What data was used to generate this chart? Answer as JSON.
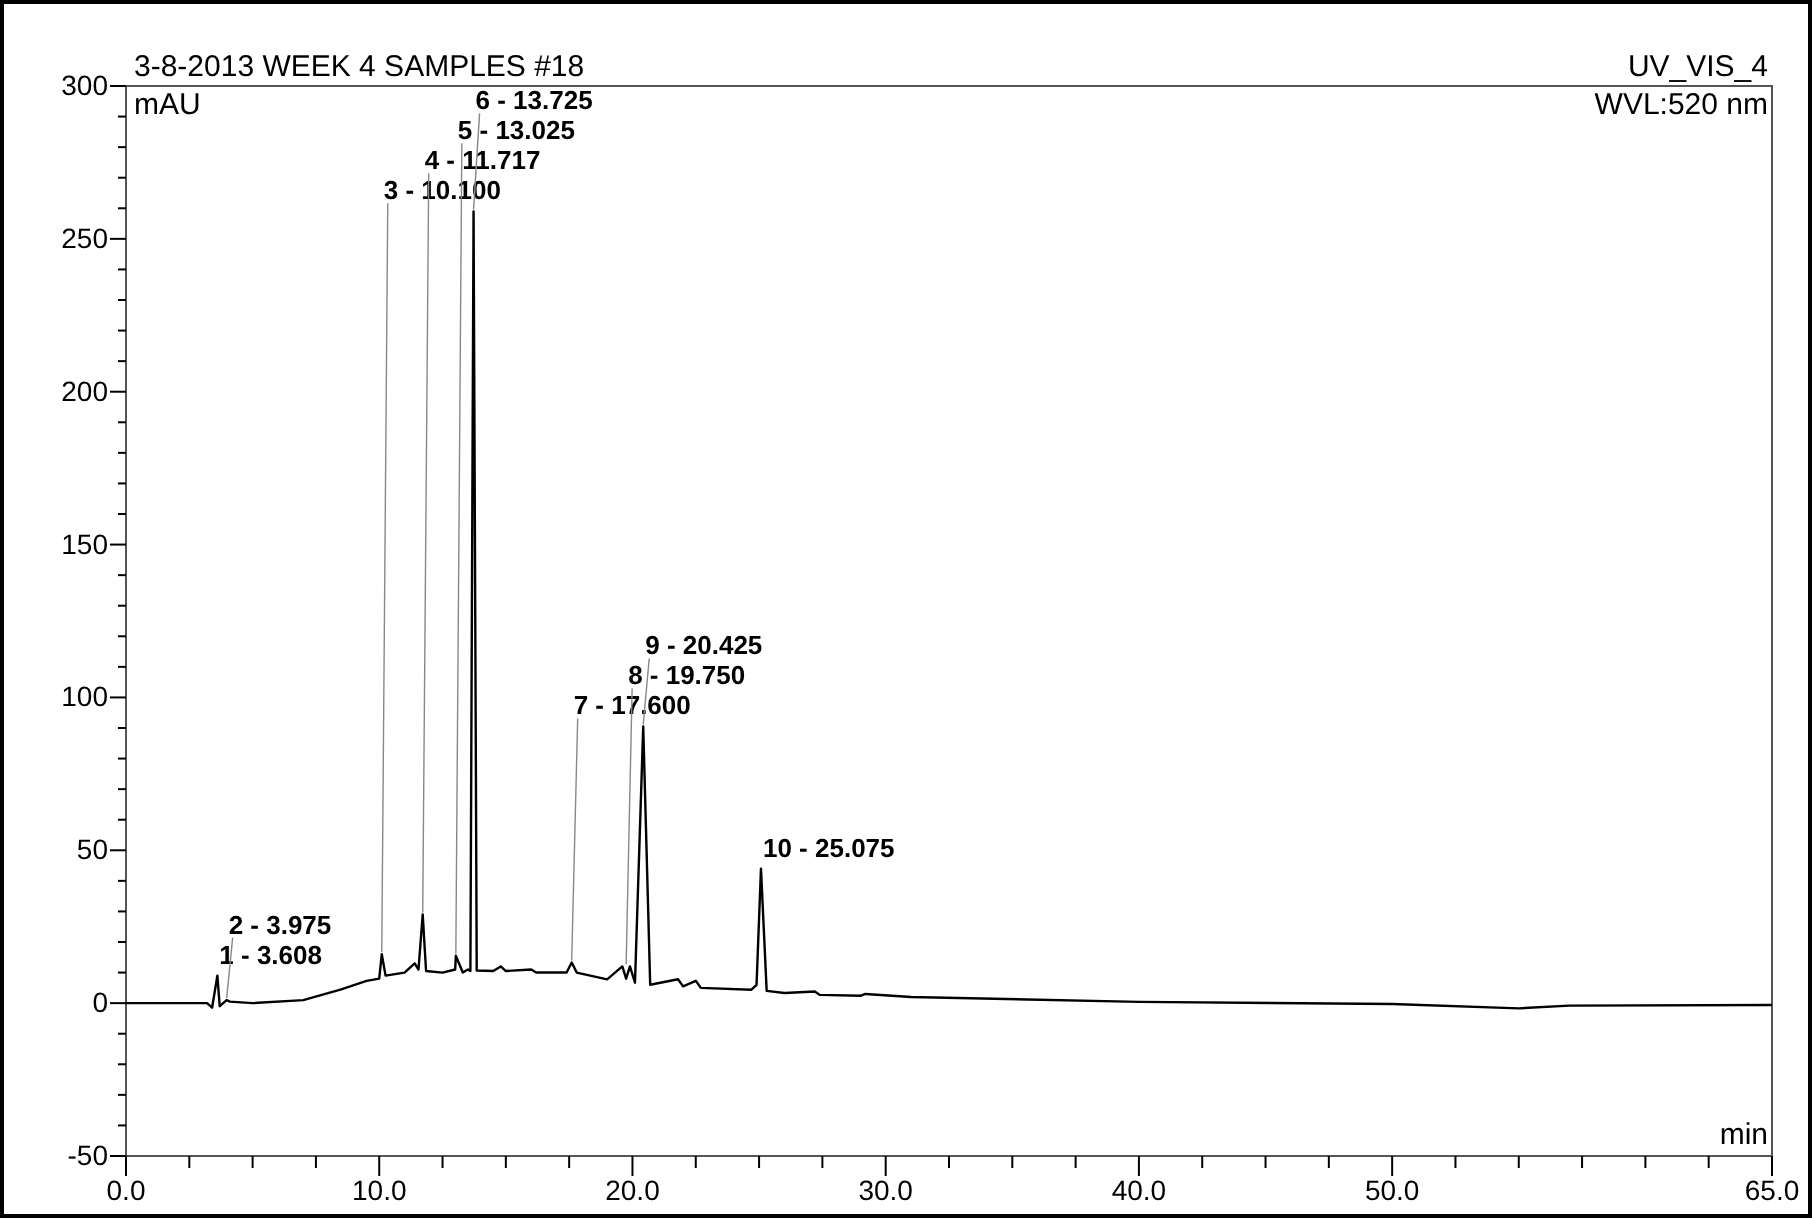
{
  "chart_data": {
    "type": "line",
    "title": "3-8-2013 WEEK 4 SAMPLES #18",
    "subtitle": "UV_VIS_4",
    "xlabel": "min",
    "ylabel": "mAU",
    "x": [
      0,
      3.2,
      3.4,
      3.608,
      3.7,
      3.975,
      4.1,
      5,
      7,
      8.5,
      9.5,
      10,
      10.1,
      10.25,
      11,
      11.4,
      11.55,
      11.717,
      11.85,
      12.5,
      13,
      13.025,
      13.3,
      13.5,
      13.6,
      13.725,
      13.85,
      14.5,
      14.8,
      15,
      16,
      16.2,
      17.4,
      17.6,
      17.8,
      19,
      19.6,
      19.75,
      19.9,
      20.1,
      20.425,
      20.7,
      21.8,
      22,
      22.5,
      22.7,
      24.7,
      24.9,
      25.075,
      25.3,
      26,
      27.2,
      27.4,
      29,
      29.2,
      31,
      40,
      50,
      55,
      57,
      65
    ],
    "series": [
      {
        "color": "#000000",
        "values": [
          0,
          0,
          -1.5,
          9,
          -1,
          1,
          0.5,
          0,
          1,
          4.5,
          7.3,
          8,
          16,
          9,
          10,
          13,
          11,
          29,
          10.5,
          10,
          11,
          15.5,
          10,
          11,
          10.5,
          259,
          10.7,
          10.5,
          12,
          10.5,
          11,
          10,
          10,
          13.3,
          10,
          7.8,
          12,
          8,
          12,
          6.7,
          90.5,
          6,
          7.8,
          5.5,
          7.3,
          5,
          4.4,
          6,
          44,
          4,
          3.3,
          3.8,
          2.7,
          2.4,
          3,
          2,
          0.4,
          -0.3,
          -1.7,
          -0.8,
          -0.6
        ]
      }
    ],
    "xlim": [
      0,
      65
    ],
    "ylim": [
      -50,
      300
    ],
    "xticks": [
      {
        "value": 0,
        "label": "0.0"
      },
      {
        "value": 2.5,
        "label": null
      },
      {
        "value": 5,
        "label": null
      },
      {
        "value": 7.5,
        "label": null
      },
      {
        "value": 10,
        "label": "10.0"
      },
      {
        "value": 12.5,
        "label": null
      },
      {
        "value": 15,
        "label": null
      },
      {
        "value": 17.5,
        "label": null
      },
      {
        "value": 20,
        "label": "20.0"
      },
      {
        "value": 22.5,
        "label": null
      },
      {
        "value": 25,
        "label": null
      },
      {
        "value": 27.5,
        "label": null
      },
      {
        "value": 30,
        "label": "30.0"
      },
      {
        "value": 32.5,
        "label": null
      },
      {
        "value": 35,
        "label": null
      },
      {
        "value": 37.5,
        "label": null
      },
      {
        "value": 40,
        "label": "40.0"
      },
      {
        "value": 42.5,
        "label": null
      },
      {
        "value": 45,
        "label": null
      },
      {
        "value": 47.5,
        "label": null
      },
      {
        "value": 50,
        "label": "50.0"
      },
      {
        "value": 52.5,
        "label": null
      },
      {
        "value": 55,
        "label": null
      },
      {
        "value": 57.5,
        "label": null
      },
      {
        "value": 60,
        "label": null
      },
      {
        "value": 62.5,
        "label": null
      },
      {
        "value": 65,
        "label": "65.0"
      }
    ],
    "yticks": [
      -50,
      {
        "value": -40,
        "label": null
      },
      {
        "value": -30,
        "label": null
      },
      {
        "value": -20,
        "label": null
      },
      {
        "value": -10,
        "label": null
      },
      0,
      {
        "value": 10,
        "label": null
      },
      {
        "value": 20,
        "label": null
      },
      {
        "value": 30,
        "label": null
      },
      {
        "value": 40,
        "label": null
      },
      50,
      {
        "value": 60,
        "label": null
      },
      {
        "value": 70,
        "label": null
      },
      {
        "value": 80,
        "label": null
      },
      {
        "value": 90,
        "label": null
      },
      100,
      {
        "value": 110,
        "label": null
      },
      {
        "value": 120,
        "label": null
      },
      {
        "value": 130,
        "label": null
      },
      {
        "value": 140,
        "label": null
      },
      150,
      {
        "value": 160,
        "label": null
      },
      {
        "value": 170,
        "label": null
      },
      {
        "value": 180,
        "label": null
      },
      {
        "value": 190,
        "label": null
      },
      200,
      {
        "value": 210,
        "label": null
      },
      {
        "value": 220,
        "label": null
      },
      {
        "value": 230,
        "label": null
      },
      {
        "value": 240,
        "label": null
      },
      250,
      {
        "value": 260,
        "label": null
      },
      {
        "value": 270,
        "label": null
      },
      {
        "value": 280,
        "label": null
      },
      {
        "value": 290,
        "label": null
      },
      300
    ],
    "grid": false,
    "annotations": [
      "WVL:520 nm",
      {
        "text": "1 - 3.608",
        "x": 3.608,
        "y": 9
      },
      {
        "text": "2 - 3.975",
        "x": 3.975,
        "y": 1
      },
      {
        "text": "3 - 10.100",
        "x": 10.1,
        "y": 16
      },
      {
        "text": "4 - 11.717",
        "x": 11.717,
        "y": 29
      },
      {
        "text": "5 - 13.025",
        "x": 13.025,
        "y": 15.5
      },
      {
        "text": "6 - 13.725",
        "x": 13.725,
        "y": 259
      },
      {
        "text": "7 - 17.600",
        "x": 17.6,
        "y": 13.3
      },
      {
        "text": "8 - 19.750",
        "x": 19.75,
        "y": 12
      },
      {
        "text": "9 - 20.425",
        "x": 20.425,
        "y": 90.5
      },
      {
        "text": "10 - 25.075",
        "x": 25.075,
        "y": 44
      }
    ]
  }
}
